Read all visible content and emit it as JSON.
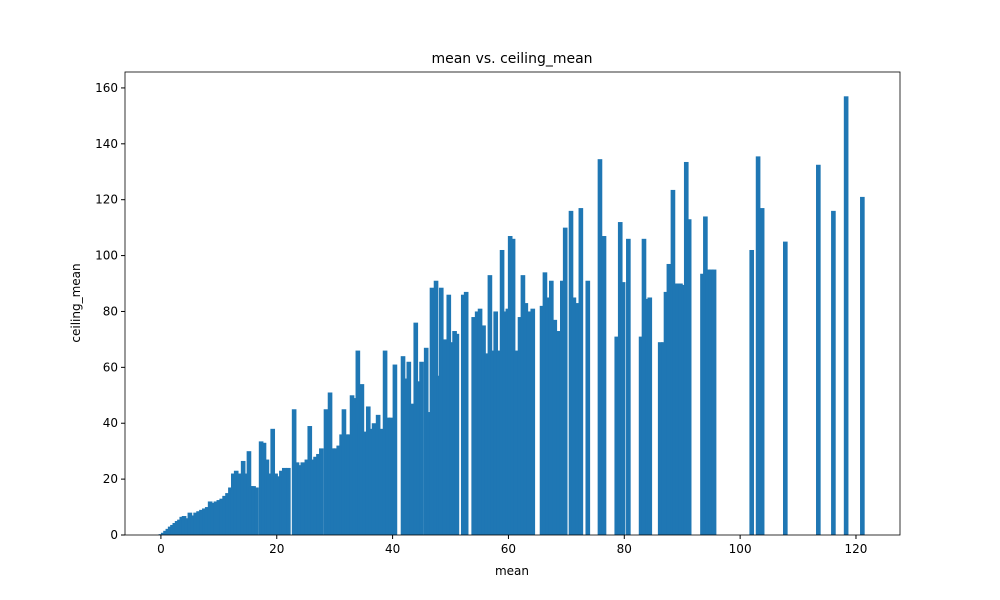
{
  "chart_data": {
    "type": "bar",
    "title": "mean vs. ceiling_mean",
    "x_label": "mean",
    "y_label": "ceiling_mean",
    "color": "#1f77b4",
    "x": [
      0,
      0.4,
      0.8,
      1.2,
      1.6,
      2,
      2.4,
      2.8,
      3.2,
      3.6,
      4,
      4.4,
      5,
      5.5,
      6,
      6.5,
      7,
      7.5,
      8,
      8.5,
      9,
      9.5,
      10,
      10.5,
      11,
      11.5,
      12,
      12.5,
      13,
      13.5,
      14.2,
      14.6,
      15.2,
      15.6,
      16,
      16.5,
      17.3,
      17.8,
      18.3,
      18.7,
      19.3,
      19.8,
      20.3,
      20.8,
      21.3,
      22,
      23,
      23.5,
      24,
      24.5,
      25.2,
      25.7,
      26.2,
      26.7,
      27.2,
      27.7,
      28.5,
      29.2,
      29.7,
      30.2,
      30.7,
      31.2,
      31.6,
      32.1,
      32.5,
      33,
      33.5,
      34,
      34.4,
      34.7,
      35.2,
      35.8,
      36.3,
      36.8,
      37.5,
      38,
      38.7,
      39.2,
      39.7,
      40.4,
      41.8,
      42.3,
      42.8,
      43.3,
      44,
      44.5,
      45,
      45.8,
      46.3,
      46.8,
      47.5,
      48,
      48.4,
      49,
      49.7,
      50.2,
      50.7,
      51.1,
      52.2,
      52.7,
      54,
      54.6,
      55.1,
      55.7,
      56.3,
      56.8,
      57.3,
      57.8,
      58.4,
      58.9,
      59.4,
      59.9,
      60.3,
      60.8,
      61.3,
      62,
      62.5,
      63,
      63.5,
      64.2,
      65.8,
      66.3,
      66.8,
      67.4,
      68,
      68.7,
      69.3,
      69.8,
      70.8,
      71.3,
      72,
      72.5,
      73.7,
      75.8,
      76.5,
      78.7,
      79.3,
      79.8,
      80.7,
      82.9,
      83.4,
      84,
      84.4,
      86.2,
      86.8,
      87.2,
      87.7,
      88.4,
      88.8,
      89.3,
      89.7,
      90.2,
      90.7,
      91.2,
      93.5,
      94,
      94.5,
      95,
      95.5,
      102,
      103.1,
      103.8,
      107.8,
      113.5,
      116.1,
      118.3,
      121.1
    ],
    "values": [
      0.3,
      0.8,
      1.5,
      2.2,
      3,
      3.6,
      4.3,
      5,
      5.5,
      6.5,
      6.8,
      6,
      8,
      7,
      8,
      8.5,
      9,
      9.5,
      10,
      12,
      11.5,
      12,
      12.5,
      13,
      14,
      15,
      17,
      22,
      23,
      22,
      26.5,
      22,
      30,
      17.5,
      17.5,
      17,
      33.5,
      33,
      27,
      22,
      38,
      22,
      21,
      23,
      24,
      24,
      45,
      26,
      25,
      26,
      27,
      39,
      27,
      28,
      29,
      31,
      45,
      51,
      31,
      31,
      32,
      36,
      45,
      36,
      36,
      50,
      49,
      66,
      40,
      54,
      37,
      46,
      38,
      40,
      43,
      38,
      66,
      42,
      42,
      61,
      64,
      56,
      62,
      47,
      76,
      55,
      62,
      67,
      44,
      88.5,
      91,
      57,
      88.5,
      70,
      86,
      69,
      73,
      72,
      86,
      87,
      78,
      80,
      81,
      75,
      65,
      93,
      66,
      80,
      66,
      102,
      80,
      81,
      107,
      106,
      66,
      78,
      93,
      83,
      80,
      81,
      82,
      94,
      85,
      91,
      77,
      73,
      91,
      110,
      116,
      85,
      83,
      117,
      91,
      134.5,
      107,
      71,
      112,
      90.5,
      106,
      71,
      106,
      84.5,
      85,
      69,
      69,
      87,
      97,
      123.5,
      90,
      90,
      90,
      89.5,
      133.5,
      113,
      93.5,
      114,
      95,
      95,
      95,
      102,
      135.5,
      117,
      105,
      132.5,
      116,
      157,
      121
    ],
    "xlim": [
      -6.2,
      127.6
    ],
    "ylim": [
      0,
      165.7
    ],
    "xticks": [
      0,
      20,
      40,
      60,
      80,
      100,
      120
    ],
    "yticks": [
      0,
      20,
      40,
      60,
      80,
      100,
      120,
      140,
      160
    ]
  }
}
